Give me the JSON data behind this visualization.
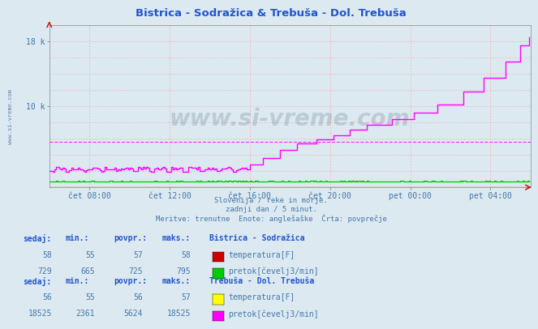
{
  "title": "Bistrica - Sodražica & Trebuša - Dol. Trebuša",
  "bg_color": "#dce9f0",
  "plot_bg_color": "#dce9f0",
  "grid_color": "#ff9999",
  "ylabel": "",
  "xlabel": "",
  "xlim": [
    0,
    288
  ],
  "ylim": [
    0,
    20000
  ],
  "ytick_positions": [
    10000,
    18000
  ],
  "ytick_labels": [
    "10 k",
    "18 k"
  ],
  "xtick_positions": [
    24,
    72,
    120,
    168,
    216,
    264
  ],
  "xtick_labels": [
    "čet 08:00",
    "čet 12:00",
    "čet 16:00",
    "čet 20:00",
    "pet 00:00",
    "pet 04:00"
  ],
  "subtitle_lines": [
    "Slovenija / reke in morje.",
    "zadnji dan / 5 minut.",
    "Meritve: trenutne  Enote: anglešaške  Črta: povprečje"
  ],
  "watermark": "www.si-vreme.com",
  "watermark_color": "#334466",
  "watermark_alpha": 0.18,
  "si_vreme_side_color": "#5577aa",
  "footnote_color": "#4477aa",
  "title_color": "#2255cc",
  "axis_label_color": "#4477aa",
  "table_header_color": "#2255cc",
  "table_value_color": "#4477aa",
  "series": {
    "bistrica_temp": {
      "color": "#cc0000",
      "label": "temperatura[F]"
    },
    "bistrica_pretok": {
      "color": "#00cc00",
      "avg": 725,
      "label": "pretok[čevelj3/min]"
    },
    "trebusa_temp": {
      "color": "#ffff00",
      "label": "temperatura[F]"
    },
    "trebusa_pretok": {
      "color": "#ff00ff",
      "avg": 5624,
      "label": "pretok[čevelj3/min]"
    }
  },
  "table": {
    "bistrica": {
      "name": "Bistrica - Sodražica",
      "sedaj_temp": 58,
      "min_temp": 55,
      "povpr_temp": 57,
      "maks_temp": 58,
      "sedaj_pretok": 729,
      "min_pretok": 665,
      "povpr_pretok": 725,
      "maks_pretok": 795
    },
    "trebusa": {
      "name": "Trebuša - Dol. Trebuša",
      "sedaj_temp": 56,
      "min_temp": 55,
      "povpr_temp": 56,
      "maks_temp": 57,
      "sedaj_pretok": 18525,
      "min_pretok": 2361,
      "povpr_pretok": 5624,
      "maks_pretok": 18525
    }
  }
}
